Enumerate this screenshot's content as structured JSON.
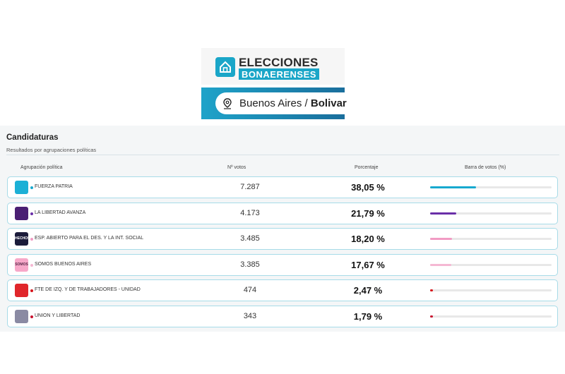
{
  "header": {
    "logo_line1": "ELECCIONES",
    "logo_line2": "BONAERENSES",
    "location_prefix": "Buenos Aires /",
    "location_name": "Bolivar"
  },
  "section": {
    "title": "Candidaturas",
    "subtitle": "Resultados por agrupaciones políticas"
  },
  "table": {
    "columns": [
      "Agrupación política",
      "Nº votos",
      "Porcentaje",
      "Barra de votos (%)"
    ],
    "rows": [
      {
        "name": "FUERZA PATRIA",
        "votes": "7.287",
        "percent": "38,05 %",
        "pct_value": 38.05,
        "color": "#17a9cf",
        "logo_color": "#1bb0d6",
        "logo_icon": "fuerza-patria-logo-icon"
      },
      {
        "name": "LA LIBERTAD AVANZA",
        "votes": "4.173",
        "percent": "21,79 %",
        "pct_value": 21.79,
        "color": "#6a2fa8",
        "logo_color": "#4a1f73",
        "logo_icon": "libertad-avanza-logo-icon"
      },
      {
        "name": "ESP. ABIERTO PARA EL DES. Y LA INT. SOCIAL",
        "votes": "3.485",
        "percent": "18,20 %",
        "pct_value": 18.2,
        "color": "#f29bc4",
        "logo_color": "#1b1b3a",
        "logo_icon": "esp-abierto-logo-icon",
        "logo_text": "HECHOS"
      },
      {
        "name": "SOMOS BUENOS AIRES",
        "votes": "3.385",
        "percent": "17,67 %",
        "pct_value": 17.67,
        "color": "#f5b8d3",
        "logo_color": "#f7a8c9",
        "logo_icon": "somos-logo-icon",
        "logo_text": "SOMOS"
      },
      {
        "name": "FTE DE IZQ. Y DE TRABAJADORES - UNIDAD",
        "votes": "474",
        "percent": "2,47 %",
        "pct_value": 2.47,
        "color": "#d7141b",
        "logo_color": "#e0262b",
        "logo_icon": "frente-izquierda-logo-icon"
      },
      {
        "name": "UNION Y LIBERTAD",
        "votes": "343",
        "percent": "1,79 %",
        "pct_value": 1.79,
        "color": "#c8102e",
        "logo_color": "#8a8aa3",
        "logo_icon": "union-libertad-logo-icon"
      }
    ]
  }
}
